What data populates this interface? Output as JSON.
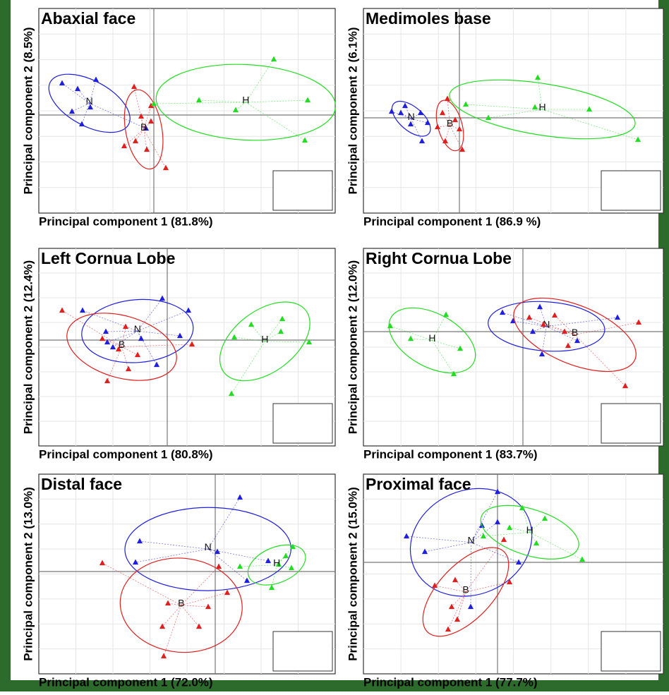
{
  "chart_data": [
    {
      "type": "scatter",
      "title": "Abaxial face",
      "x_label": "Principal component 1 (81.8%)",
      "y_label": "Principal component 2 (8.5%)",
      "xlim": [
        -1.63,
        2.57
      ],
      "ylim": [
        -1.39,
        1.51
      ],
      "series": [
        {
          "name": "N",
          "color": "#1f1fe0",
          "x": [
            -1.3,
            -1.08,
            -0.82,
            -1.16,
            -1.02,
            -0.9,
            -0.11
          ],
          "y": [
            0.45,
            0.37,
            0.5,
            0.05,
            -0.13,
            0.11,
            -0.19
          ]
        },
        {
          "name": "B",
          "color": "#e01f1f",
          "x": [
            -0.28,
            -0.04,
            -0.18,
            -0.04,
            -0.26,
            -0.42,
            -0.1,
            0.17
          ],
          "y": [
            0.4,
            0.13,
            -0.02,
            -0.09,
            -0.37,
            -0.44,
            -0.49,
            -0.75
          ]
        },
        {
          "name": "H",
          "color": "#22dd22",
          "x": [
            1.7,
            0.64,
            1.16,
            2.18,
            2.14,
            0.0
          ],
          "y": [
            0.79,
            0.21,
            0.07,
            0.21,
            -0.36,
            0.16
          ]
        }
      ]
    },
    {
      "type": "scatter",
      "title": "Medimoles base",
      "x_label": "Principal component 1 (86.9 %)",
      "y_label": "Principal component 2 (6.1%)",
      "xlim": [
        -1.36,
        2.89
      ],
      "ylim": [
        -1.35,
        1.55
      ],
      "series": [
        {
          "name": "N",
          "color": "#1f1fe0",
          "x": [
            -0.96,
            -0.83,
            -0.77,
            -0.55,
            -0.69,
            -0.53,
            -0.45
          ],
          "y": [
            0.09,
            0.07,
            0.17,
            0.07,
            -0.09,
            -0.33,
            -0.07
          ]
        },
        {
          "name": "B",
          "color": "#e01f1f",
          "x": [
            -0.17,
            -0.24,
            -0.06,
            0.0,
            -0.2,
            0.04,
            -0.31
          ],
          "y": [
            0.27,
            0.07,
            -0.03,
            -0.16,
            -0.33,
            -0.45,
            -0.13
          ]
        },
        {
          "name": "H",
          "color": "#22dd22",
          "x": [
            1.11,
            0.09,
            0.41,
            1.07,
            1.84,
            2.53
          ],
          "y": [
            0.57,
            0.19,
            0.0,
            0.15,
            0.12,
            -0.31
          ]
        }
      ]
    },
    {
      "type": "scatter",
      "title": "Left Cornua Lobe",
      "x_label": "Principal component 1 (80.8%)",
      "y_label": "Principal component 2 (12.4%)",
      "xlim": [
        -1.82,
        2.38
      ],
      "ylim": [
        -1.5,
        1.3
      ],
      "series": [
        {
          "name": "N",
          "color": "#1f1fe0",
          "x": [
            -1.2,
            -0.07,
            0.3,
            -0.87,
            -0.85,
            -0.77,
            -0.37,
            -0.15,
            0.18
          ],
          "y": [
            0.42,
            0.59,
            0.42,
            0.12,
            -0.03,
            -0.1,
            0.02,
            -0.35,
            0.06
          ]
        },
        {
          "name": "B",
          "color": "#e01f1f",
          "x": [
            -1.49,
            -0.59,
            -0.92,
            -0.69,
            -0.42,
            -0.55,
            -0.85,
            0.35
          ],
          "y": [
            0.42,
            0.19,
            0.02,
            -0.13,
            -0.21,
            -0.41,
            -0.58,
            -0.06
          ]
        },
        {
          "name": "H",
          "color": "#22dd22",
          "x": [
            1.19,
            1.63,
            1.61,
            0.95,
            2.01,
            0.91
          ],
          "y": [
            0.22,
            0.3,
            0.12,
            0.04,
            -0.03,
            -0.76
          ]
        }
      ]
    },
    {
      "type": "scatter",
      "title": "Right Cornua Lobe",
      "x_label": "Principal component 1 (83.7%)",
      "y_label": "Principal component 2 (12.0%)",
      "xlim": [
        -2.26,
        1.99
      ],
      "ylim": [
        -1.62,
        1.18
      ],
      "series": [
        {
          "name": "N",
          "color": "#1f1fe0",
          "x": [
            -0.29,
            0.24,
            -0.14,
            0.14,
            0.77,
            0.27,
            1.34
          ],
          "y": [
            0.27,
            0.35,
            0.15,
            0.0,
            -0.13,
            -0.32,
            0.2
          ]
        },
        {
          "name": "B",
          "color": "#e01f1f",
          "x": [
            0.45,
            0.09,
            0.29,
            0.59,
            0.64,
            1.64,
            1.45
          ],
          "y": [
            0.23,
            0.2,
            0.1,
            0.0,
            -0.2,
            0.13,
            -0.77
          ]
        },
        {
          "name": "H",
          "color": "#22dd22",
          "x": [
            -1.88,
            -1.09,
            -1.59,
            -0.89,
            -0.98
          ],
          "y": [
            0.08,
            0.24,
            -0.1,
            -0.24,
            -0.6
          ]
        }
      ]
    },
    {
      "type": "scatter",
      "title": "Distal face",
      "x_label": "Principal component 1 (72.0%)",
      "y_label": "Principal component 2 (13.0%)",
      "xlim": [
        -2.5,
        1.7
      ],
      "ylim": [
        -1.45,
        1.38
      ],
      "series": [
        {
          "name": "N",
          "color": "#1f1fe0",
          "x": [
            0.35,
            -1.07,
            -1.13,
            0.03,
            0.45,
            0.75
          ],
          "y": [
            1.05,
            0.43,
            0.13,
            0.28,
            -0.13,
            0.15
          ]
        },
        {
          "name": "B",
          "color": "#e01f1f",
          "x": [
            -1.6,
            0.05,
            0.17,
            -0.67,
            -0.75,
            -0.23,
            -0.1,
            -0.73
          ],
          "y": [
            0.12,
            0.07,
            -0.3,
            -0.45,
            -0.78,
            -0.78,
            -0.5,
            -1.2
          ]
        },
        {
          "name": "H",
          "color": "#22dd22",
          "x": [
            1.1,
            1.0,
            0.9,
            1.08,
            0.35,
            0.8
          ],
          "y": [
            0.35,
            0.22,
            0.1,
            0.05,
            0.07,
            -0.23
          ]
        }
      ]
    },
    {
      "type": "scatter",
      "title": "Proximal face",
      "x_label": "Principal component 1 (77.7%)",
      "y_label": "Principal component 2 (15.0%)",
      "xlim": [
        -1.9,
        2.35
      ],
      "ylim": [
        -1.58,
        1.25
      ],
      "series": [
        {
          "name": "N",
          "color": "#1f1fe0",
          "x": [
            0.0,
            -1.29,
            -1.03,
            -0.22,
            0.3,
            -0.38,
            0.0
          ],
          "y": [
            1.0,
            0.37,
            0.15,
            0.52,
            0.0,
            -0.63,
            0.57
          ]
        },
        {
          "name": "B",
          "color": "#e01f1f",
          "x": [
            -0.89,
            -0.6,
            0.17,
            -0.65,
            -0.57,
            -0.7,
            0.09
          ],
          "y": [
            -0.33,
            -0.25,
            -0.28,
            -0.63,
            -0.81,
            -0.95,
            0.32
          ]
        },
        {
          "name": "H",
          "color": "#22dd22",
          "x": [
            0.35,
            0.67,
            0.17,
            0.55,
            1.2,
            -0.2
          ],
          "y": [
            0.77,
            0.62,
            0.49,
            0.27,
            0.04,
            0.37
          ]
        }
      ]
    }
  ]
}
